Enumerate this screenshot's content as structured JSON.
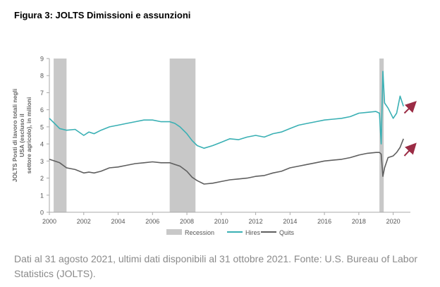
{
  "figure_title": "Figura 3: JOLTS Dimissioni e assunzioni",
  "source_note": "Dati al 31 agosto 2021, ultimi dati disponibili al 31 ottobre 2021. Fonte: U.S. Bureau of Labor Statistics (JOLTS).",
  "colors": {
    "hires": "#3ab0b4",
    "quits": "#5f5f5f",
    "recession": "#c8c8c8",
    "arrow": "#9b2c45"
  },
  "chart_data": {
    "type": "line",
    "title": "",
    "xlabel": "",
    "ylabel": "JOLTS Posti di lavoro totali negli USA (escluso il settore agricolo), in milioni",
    "xlim": [
      2000,
      2021
    ],
    "ylim": [
      0,
      9
    ],
    "x_ticks": [
      "2000",
      "2002",
      "2004",
      "2006",
      "2008",
      "2010",
      "2012",
      "2014",
      "2016",
      "2018",
      "2020"
    ],
    "y_ticks": [
      "0",
      "1",
      "2",
      "3",
      "4",
      "5",
      "6",
      "7",
      "8",
      "9"
    ],
    "legend": [
      "Recession",
      "Hires",
      "Quits"
    ],
    "legend_position": "bottom",
    "recessions": [
      {
        "start": 2000.25,
        "end": 2001.0
      },
      {
        "start": 2007.0,
        "end": 2008.5
      },
      {
        "start": 2019.2,
        "end": 2019.45
      }
    ],
    "series": [
      {
        "name": "Hires",
        "x": [
          2000.0,
          2000.3,
          2000.6,
          2001.0,
          2001.5,
          2002.0,
          2002.3,
          2002.6,
          2003.0,
          2003.5,
          2004.0,
          2004.5,
          2005.0,
          2005.5,
          2006.0,
          2006.5,
          2007.0,
          2007.3,
          2007.6,
          2008.0,
          2008.3,
          2008.6,
          2009.0,
          2009.5,
          2010.0,
          2010.5,
          2011.0,
          2011.5,
          2012.0,
          2012.5,
          2013.0,
          2013.5,
          2014.0,
          2014.5,
          2015.0,
          2015.5,
          2016.0,
          2016.5,
          2017.0,
          2017.5,
          2018.0,
          2018.5,
          2019.0,
          2019.2,
          2019.3,
          2019.4,
          2019.5,
          2019.7,
          2020.0,
          2020.2,
          2020.4,
          2020.6
        ],
        "y": [
          5.5,
          5.2,
          4.9,
          4.8,
          4.85,
          4.5,
          4.7,
          4.6,
          4.8,
          5.0,
          5.1,
          5.2,
          5.3,
          5.4,
          5.4,
          5.3,
          5.3,
          5.2,
          5.0,
          4.6,
          4.2,
          3.9,
          3.75,
          3.9,
          4.1,
          4.3,
          4.25,
          4.4,
          4.5,
          4.4,
          4.6,
          4.7,
          4.9,
          5.1,
          5.2,
          5.3,
          5.4,
          5.45,
          5.5,
          5.6,
          5.8,
          5.85,
          5.9,
          5.8,
          4.0,
          8.25,
          6.4,
          6.1,
          5.5,
          5.8,
          6.8,
          6.2
        ]
      },
      {
        "name": "Quits",
        "x": [
          2000.0,
          2000.3,
          2000.6,
          2001.0,
          2001.5,
          2002.0,
          2002.3,
          2002.6,
          2003.0,
          2003.5,
          2004.0,
          2004.5,
          2005.0,
          2005.5,
          2006.0,
          2006.5,
          2007.0,
          2007.3,
          2007.6,
          2008.0,
          2008.3,
          2008.6,
          2009.0,
          2009.5,
          2010.0,
          2010.5,
          2011.0,
          2011.5,
          2012.0,
          2012.5,
          2013.0,
          2013.5,
          2014.0,
          2014.5,
          2015.0,
          2015.5,
          2016.0,
          2016.5,
          2017.0,
          2017.5,
          2018.0,
          2018.5,
          2019.0,
          2019.2,
          2019.3,
          2019.4,
          2019.5,
          2019.7,
          2020.0,
          2020.2,
          2020.4,
          2020.6
        ],
        "y": [
          3.1,
          3.0,
          2.9,
          2.6,
          2.5,
          2.3,
          2.35,
          2.3,
          2.4,
          2.6,
          2.65,
          2.75,
          2.85,
          2.9,
          2.95,
          2.9,
          2.9,
          2.8,
          2.7,
          2.4,
          2.05,
          1.85,
          1.65,
          1.7,
          1.8,
          1.9,
          1.95,
          2.0,
          2.1,
          2.15,
          2.3,
          2.4,
          2.6,
          2.7,
          2.8,
          2.9,
          3.0,
          3.05,
          3.1,
          3.2,
          3.35,
          3.45,
          3.5,
          3.5,
          3.4,
          2.1,
          2.6,
          3.2,
          3.3,
          3.5,
          3.8,
          4.3
        ]
      }
    ]
  }
}
